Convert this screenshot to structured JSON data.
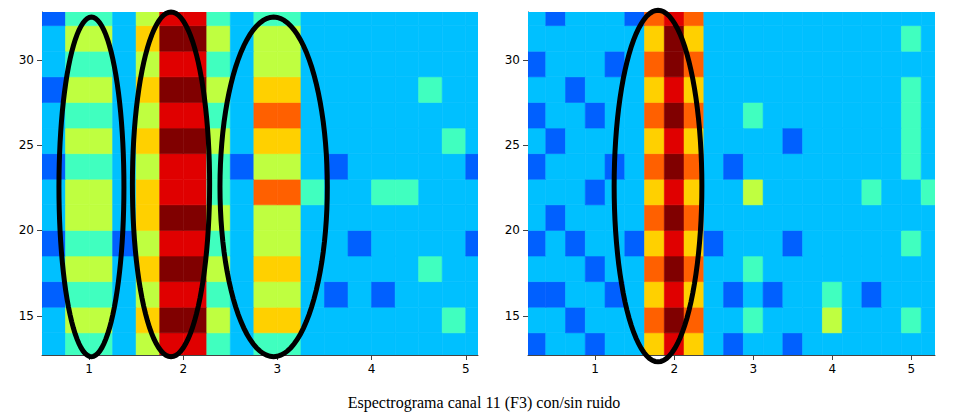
{
  "chart_data": [
    {
      "type": "heatmap",
      "xlim": [
        0.5,
        5.13
      ],
      "ylim": [
        12.7,
        32.8
      ],
      "xticks": [
        1,
        2,
        3,
        4,
        5
      ],
      "yticks": [
        15,
        20,
        25,
        30
      ],
      "x_edges": [
        0.5,
        0.75,
        1.0,
        1.25,
        1.5,
        1.75,
        2.0,
        2.25,
        2.5,
        2.75,
        3.0,
        3.25,
        3.5,
        3.75,
        4.0,
        4.25,
        4.5,
        4.75,
        5.0,
        5.25
      ],
      "y_edges": [
        12.5,
        14,
        15.5,
        17,
        18.5,
        20,
        21.5,
        23,
        24.5,
        26,
        27.5,
        29,
        30.5,
        32,
        33.5
      ],
      "zlim": [
        0,
        9
      ],
      "z": [
        [
          3,
          4,
          4,
          3,
          5,
          8,
          8,
          4,
          3,
          4,
          4,
          3,
          3,
          3,
          3,
          3,
          3,
          3,
          3
        ],
        [
          3,
          5,
          5,
          3,
          6,
          9,
          9,
          5,
          3,
          6,
          6,
          3,
          3,
          3,
          3,
          3,
          3,
          4,
          3
        ],
        [
          2,
          4,
          4,
          3,
          5,
          8,
          8,
          4,
          3,
          5,
          5,
          3,
          2,
          3,
          2,
          3,
          3,
          3,
          3
        ],
        [
          3,
          5,
          5,
          3,
          6,
          9,
          9,
          5,
          3,
          6,
          6,
          3,
          3,
          3,
          3,
          3,
          4,
          3,
          3
        ],
        [
          2,
          4,
          4,
          2,
          5,
          8,
          8,
          4,
          3,
          5,
          5,
          3,
          3,
          2,
          3,
          3,
          3,
          3,
          2
        ],
        [
          3,
          5,
          5,
          3,
          6,
          9,
          9,
          5,
          3,
          5,
          5,
          3,
          3,
          3,
          3,
          3,
          3,
          3,
          3
        ],
        [
          3,
          5,
          5,
          3,
          6,
          8,
          8,
          4,
          3,
          7,
          7,
          4,
          3,
          3,
          4,
          4,
          3,
          3,
          3
        ],
        [
          2,
          4,
          4,
          3,
          5,
          8,
          8,
          4,
          2,
          5,
          5,
          3,
          2,
          3,
          3,
          3,
          3,
          3,
          2
        ],
        [
          3,
          5,
          5,
          3,
          6,
          9,
          9,
          5,
          3,
          6,
          6,
          3,
          3,
          3,
          3,
          3,
          3,
          4,
          3
        ],
        [
          3,
          4,
          4,
          3,
          5,
          8,
          8,
          4,
          3,
          7,
          7,
          3,
          3,
          3,
          3,
          3,
          3,
          3,
          3
        ],
        [
          2,
          5,
          5,
          3,
          6,
          9,
          9,
          5,
          3,
          6,
          6,
          3,
          3,
          3,
          3,
          3,
          4,
          3,
          3
        ],
        [
          3,
          4,
          4,
          3,
          5,
          8,
          8,
          4,
          3,
          5,
          5,
          3,
          3,
          3,
          3,
          3,
          3,
          3,
          3
        ],
        [
          3,
          5,
          5,
          3,
          6,
          9,
          9,
          5,
          3,
          5,
          5,
          3,
          3,
          3,
          3,
          3,
          3,
          3,
          3
        ],
        [
          2,
          4,
          4,
          3,
          5,
          8,
          8,
          4,
          3,
          4,
          4,
          3,
          3,
          3,
          3,
          3,
          3,
          3,
          3
        ]
      ],
      "ellipses": [
        {
          "x": [
            0.68,
            1.37
          ],
          "y": [
            12.6,
            32.5
          ]
        },
        {
          "x": [
            1.46,
            2.28
          ],
          "y": [
            12.6,
            32.8
          ]
        },
        {
          "x": [
            2.39,
            3.53
          ],
          "y": [
            12.6,
            32.5
          ]
        }
      ]
    },
    {
      "type": "heatmap",
      "xlim": [
        0.15,
        5.3
      ],
      "ylim": [
        12.7,
        32.8
      ],
      "xticks": [
        1,
        2,
        3,
        4,
        5
      ],
      "yticks": [
        15,
        20,
        25,
        30
      ],
      "x_edges": [
        0.125,
        0.375,
        0.625,
        0.875,
        1.125,
        1.375,
        1.625,
        1.875,
        2.125,
        2.375,
        2.625,
        2.875,
        3.125,
        3.375,
        3.625,
        3.875,
        4.125,
        4.375,
        4.625,
        4.875,
        5.125,
        5.375
      ],
      "y_edges": [
        12.5,
        14,
        15.5,
        17,
        18.5,
        20,
        21.5,
        23,
        24.5,
        26,
        27.5,
        29,
        30.5,
        32,
        33.5
      ],
      "zlim": [
        0,
        9
      ],
      "z": [
        [
          2,
          3,
          3,
          2,
          3,
          3,
          6,
          8,
          6,
          3,
          2,
          3,
          3,
          2,
          3,
          3,
          3,
          3,
          3,
          3,
          3
        ],
        [
          3,
          3,
          2,
          3,
          3,
          3,
          7,
          9,
          7,
          3,
          3,
          4,
          3,
          3,
          3,
          5,
          3,
          3,
          3,
          4,
          3
        ],
        [
          2,
          2,
          3,
          3,
          2,
          3,
          6,
          8,
          6,
          3,
          2,
          3,
          2,
          3,
          3,
          4,
          3,
          2,
          3,
          3,
          3
        ],
        [
          3,
          3,
          3,
          2,
          3,
          3,
          7,
          9,
          7,
          3,
          3,
          4,
          3,
          3,
          3,
          3,
          3,
          3,
          3,
          3,
          3
        ],
        [
          2,
          3,
          2,
          3,
          3,
          2,
          6,
          8,
          6,
          2,
          3,
          3,
          3,
          2,
          3,
          3,
          3,
          3,
          3,
          4,
          3
        ],
        [
          3,
          2,
          3,
          3,
          3,
          3,
          7,
          9,
          7,
          3,
          3,
          3,
          3,
          3,
          3,
          3,
          3,
          3,
          3,
          3,
          3
        ],
        [
          3,
          3,
          3,
          2,
          3,
          3,
          6,
          8,
          6,
          3,
          3,
          5,
          3,
          3,
          3,
          3,
          3,
          4,
          3,
          3,
          4
        ],
        [
          2,
          3,
          3,
          3,
          2,
          3,
          7,
          9,
          7,
          3,
          2,
          3,
          3,
          3,
          3,
          3,
          3,
          3,
          3,
          4,
          3
        ],
        [
          3,
          2,
          3,
          3,
          3,
          3,
          6,
          8,
          6,
          3,
          3,
          3,
          3,
          2,
          3,
          3,
          3,
          3,
          3,
          4,
          3
        ],
        [
          2,
          3,
          3,
          2,
          3,
          3,
          7,
          9,
          7,
          3,
          3,
          4,
          3,
          3,
          3,
          3,
          3,
          3,
          3,
          4,
          3
        ],
        [
          3,
          3,
          2,
          3,
          3,
          3,
          6,
          8,
          6,
          3,
          3,
          3,
          3,
          3,
          3,
          3,
          3,
          3,
          3,
          4,
          3
        ],
        [
          2,
          3,
          3,
          3,
          2,
          3,
          7,
          9,
          7,
          3,
          3,
          3,
          3,
          3,
          3,
          3,
          3,
          3,
          3,
          3,
          3
        ],
        [
          3,
          3,
          3,
          3,
          3,
          3,
          6,
          9,
          6,
          3,
          3,
          3,
          3,
          3,
          3,
          3,
          3,
          3,
          3,
          4,
          3
        ],
        [
          3,
          2,
          3,
          3,
          3,
          2,
          7,
          8,
          7,
          3,
          3,
          3,
          3,
          3,
          3,
          3,
          3,
          3,
          3,
          3,
          3
        ]
      ],
      "ellipses": [
        {
          "x": [
            1.24,
            2.35
          ],
          "y": [
            12.3,
            32.9
          ]
        }
      ]
    }
  ],
  "caption": "Espectrograma canal 11 (F3) con/sin ruido"
}
